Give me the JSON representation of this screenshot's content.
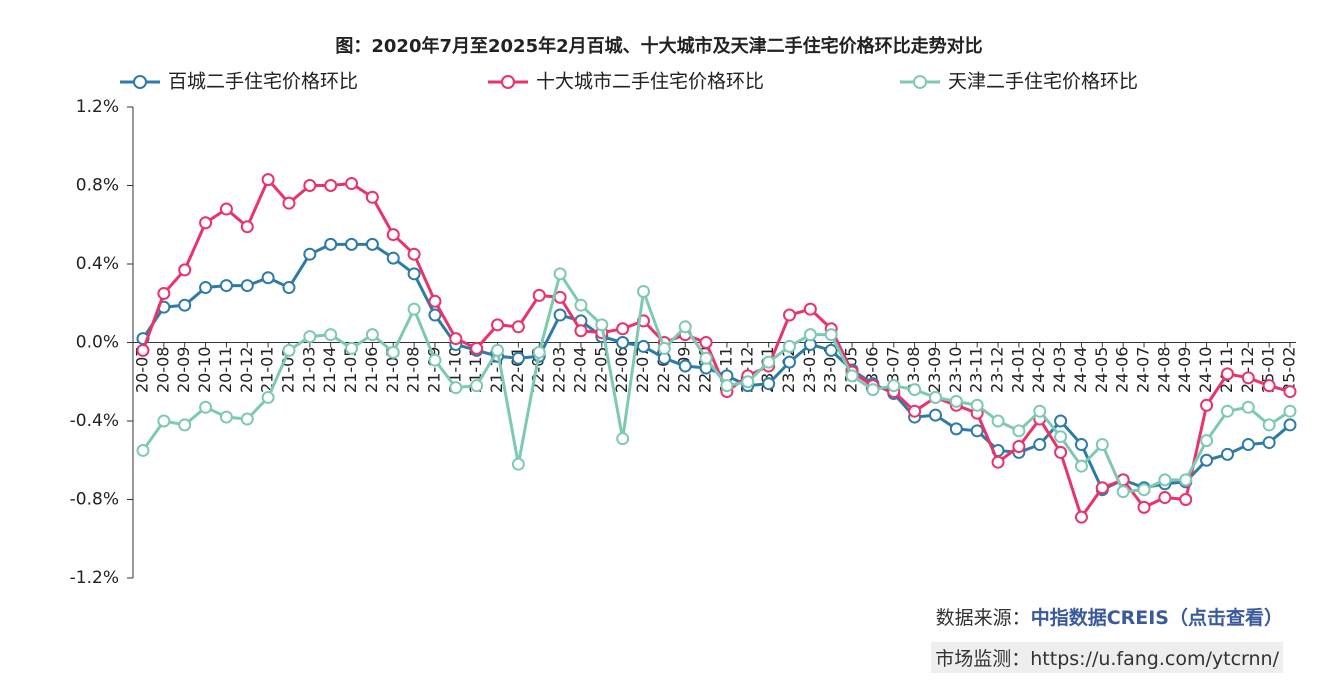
{
  "chart_data": {
    "type": "line",
    "title": "图：2020年7月至2025年2月百城、十大城市及天津二手住宅价格环比走势对比",
    "categories": [
      "20-07",
      "20-08",
      "20-09",
      "20-10",
      "20-11",
      "20-12",
      "21-01",
      "21-02",
      "21-03",
      "21-04",
      "21-05",
      "21-06",
      "21-07",
      "21-08",
      "21-09",
      "21-10",
      "21-11",
      "21-12",
      "22-01",
      "22-02",
      "22-03",
      "22-04",
      "22-05",
      "22-06",
      "22-07",
      "22-08",
      "22-09",
      "22-10",
      "22-11",
      "22-12",
      "23-01",
      "23-02",
      "23-03",
      "23-04",
      "23-05",
      "23-06",
      "23-07",
      "23-08",
      "23-09",
      "23-10",
      "23-11",
      "23-12",
      "24-01",
      "24-02",
      "24-03",
      "24-04",
      "24-05",
      "24-06",
      "24-07",
      "24-08",
      "24-09",
      "24-10",
      "24-11",
      "24-12",
      "25-01",
      "25-02"
    ],
    "series": [
      {
        "name": "百城二手住宅价格环比",
        "color": "#2e7ba6",
        "values": [
          0.02,
          0.18,
          0.19,
          0.28,
          0.29,
          0.29,
          0.33,
          0.28,
          0.45,
          0.5,
          0.5,
          0.5,
          0.43,
          0.35,
          0.14,
          -0.01,
          -0.04,
          -0.07,
          -0.08,
          -0.07,
          0.14,
          0.11,
          0.03,
          0.0,
          -0.02,
          -0.08,
          -0.12,
          -0.13,
          -0.17,
          -0.22,
          -0.21,
          -0.1,
          -0.01,
          -0.04,
          -0.14,
          -0.21,
          -0.26,
          -0.38,
          -0.37,
          -0.44,
          -0.45,
          -0.55,
          -0.56,
          -0.52,
          -0.4,
          -0.52,
          -0.75,
          -0.7,
          -0.74,
          -0.72,
          -0.71,
          -0.6,
          -0.57,
          -0.52,
          -0.51,
          -0.42
        ]
      },
      {
        "name": "十大城市二手住宅价格环比",
        "color": "#e8336b",
        "values": [
          -0.04,
          0.25,
          0.37,
          0.61,
          0.68,
          0.59,
          0.83,
          0.71,
          0.8,
          0.8,
          0.81,
          0.74,
          0.55,
          0.45,
          0.21,
          0.02,
          -0.03,
          0.09,
          0.08,
          0.24,
          0.23,
          0.06,
          0.05,
          0.07,
          0.11,
          0.0,
          0.04,
          0.0,
          -0.25,
          -0.17,
          -0.12,
          0.14,
          0.17,
          0.07,
          -0.15,
          -0.22,
          -0.25,
          -0.35,
          -0.28,
          -0.32,
          -0.36,
          -0.61,
          -0.53,
          -0.39,
          -0.56,
          -0.89,
          -0.74,
          -0.7,
          -0.84,
          -0.79,
          -0.8,
          -0.32,
          -0.16,
          -0.18,
          -0.22,
          -0.25
        ]
      },
      {
        "name": "天津二手住宅价格环比",
        "color": "#7ec9b4",
        "values": [
          -0.55,
          -0.4,
          -0.42,
          -0.33,
          -0.38,
          -0.39,
          -0.28,
          -0.04,
          0.03,
          0.04,
          -0.03,
          0.04,
          -0.05,
          0.17,
          -0.09,
          -0.23,
          -0.22,
          -0.04,
          -0.62,
          -0.05,
          0.35,
          0.19,
          0.09,
          -0.49,
          0.26,
          -0.03,
          0.08,
          -0.08,
          -0.22,
          -0.2,
          -0.1,
          -0.02,
          0.04,
          0.04,
          -0.17,
          -0.24,
          -0.22,
          -0.24,
          -0.28,
          -0.3,
          -0.32,
          -0.4,
          -0.45,
          -0.35,
          -0.48,
          -0.63,
          -0.52,
          -0.76,
          -0.75,
          -0.7,
          -0.7,
          -0.5,
          -0.35,
          -0.33,
          -0.42,
          -0.35
        ]
      }
    ],
    "ylim": [
      -1.2,
      1.2
    ],
    "yticks": [
      {
        "value": -1.2,
        "label": "-1.2%"
      },
      {
        "value": -0.8,
        "label": "-0.8%"
      },
      {
        "value": -0.4,
        "label": "-0.4%"
      },
      {
        "value": 0,
        "label": "0.0%"
      },
      {
        "value": 0.4,
        "label": "0.4%"
      },
      {
        "value": 0.8,
        "label": "0.8%"
      },
      {
        "value": 1.2,
        "label": "1.2%"
      }
    ],
    "grid": false,
    "legend": "top",
    "markers": true
  },
  "source": {
    "label": "数据来源：",
    "link": "中指数据CREIS（点击查看）",
    "monitor": "市场监测：https://u.fang.com/ytcrnn/"
  }
}
